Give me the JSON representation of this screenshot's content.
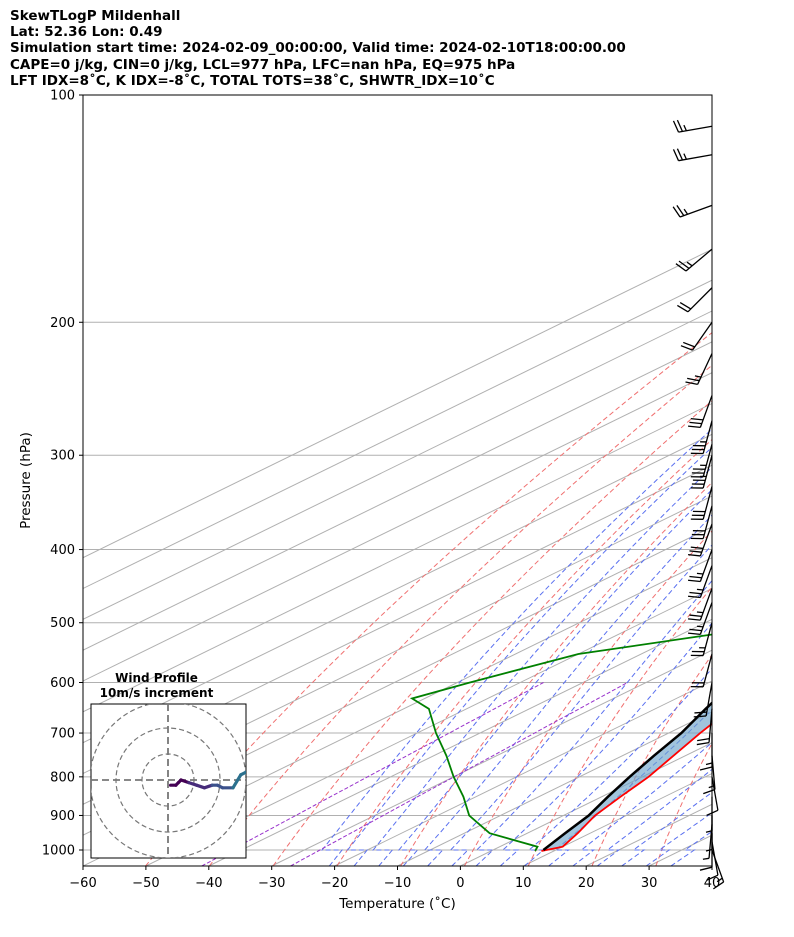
{
  "header": {
    "line1": "SkewTLogP Mildenhall",
    "line2": "Lat: 52.36   Lon: 0.49",
    "line3": "Simulation start time: 2024-02-09_00:00:00, Valid time: 2024-02-10T18:00:00.00",
    "line4": "CAPE=0 j/kg, CIN=0 j/kg, LCL=977 hPa, LFC=nan hPa, EQ=975 hPa",
    "line5": "LFT IDX=8˚C, K IDX=-8˚C, TOTAL TOTS=38˚C, SHWTR_IDX=10˚C"
  },
  "chart_data": {
    "type": "skewt",
    "xlabel": "Temperature (˚C)",
    "ylabel": "Pressure (hPa)",
    "xlim": [
      -60,
      40
    ],
    "ylim": [
      1050,
      100
    ],
    "log_y": true,
    "grid": true,
    "x_ticks": [
      "−60",
      "−50",
      "−40",
      "−30",
      "−20",
      "−10",
      "0",
      "10",
      "20",
      "30",
      "40"
    ],
    "y_ticks": [
      "100",
      "200",
      "300",
      "400",
      "500",
      "600",
      "700",
      "800",
      "900",
      "1000"
    ],
    "series": [
      {
        "role": "temperature",
        "color": "#ff0000",
        "points": [
          [
            1003,
            8
          ],
          [
            990,
            10
          ],
          [
            950,
            8
          ],
          [
            900,
            5
          ],
          [
            850,
            3
          ],
          [
            800,
            1
          ],
          [
            700,
            -5
          ],
          [
            650,
            -8
          ],
          [
            600,
            -12
          ],
          [
            550,
            -17
          ],
          [
            500,
            -22
          ],
          [
            450,
            -26
          ],
          [
            400,
            -31
          ],
          [
            350,
            -37
          ],
          [
            300,
            -44
          ],
          [
            270,
            -49
          ],
          [
            250,
            -52
          ],
          [
            240,
            -53
          ],
          [
            220,
            -52
          ],
          [
            200,
            -54
          ],
          [
            180,
            -56
          ],
          [
            160,
            -58
          ],
          [
            140,
            -58
          ],
          [
            120,
            -60
          ],
          [
            100,
            -62
          ]
        ]
      },
      {
        "role": "dewpoint",
        "color": "#008000",
        "points": [
          [
            1003,
            7
          ],
          [
            990,
            6
          ],
          [
            950,
            -6
          ],
          [
            900,
            -15
          ],
          [
            850,
            -22
          ],
          [
            800,
            -30
          ],
          [
            750,
            -38
          ],
          [
            700,
            -47
          ],
          [
            650,
            -56
          ],
          [
            630,
            -62
          ],
          [
            600,
            -58
          ],
          [
            550,
            -50
          ],
          [
            500,
            -26
          ],
          [
            470,
            -25
          ],
          [
            450,
            -28
          ],
          [
            400,
            -34
          ],
          [
            350,
            -41
          ],
          [
            320,
            -47
          ],
          [
            300,
            -52
          ],
          [
            270,
            -56
          ],
          [
            250,
            -58
          ],
          [
            240,
            -60
          ],
          [
            220,
            -64
          ],
          [
            200,
            -70
          ],
          [
            185,
            -72
          ],
          [
            170,
            -72
          ],
          [
            150,
            -72
          ],
          [
            125,
            -72
          ],
          [
            100,
            -73
          ]
        ]
      },
      {
        "role": "parcel",
        "color": "#000000",
        "points": [
          [
            1000,
            8
          ],
          [
            950,
            6
          ],
          [
            900,
            4
          ],
          [
            850,
            1
          ],
          [
            800,
            -2
          ],
          [
            750,
            -5
          ],
          [
            700,
            -8
          ],
          [
            650,
            -12
          ],
          [
            600,
            -16
          ],
          [
            550,
            -20
          ],
          [
            500,
            -25
          ],
          [
            450,
            -30
          ],
          [
            400,
            -37
          ],
          [
            350,
            -44
          ],
          [
            300,
            -51
          ],
          [
            250,
            -60
          ],
          [
            200,
            -69
          ],
          [
            150,
            -82
          ],
          [
            125,
            -90
          ],
          [
            100,
            -98
          ]
        ]
      }
    ],
    "shading": {
      "label": "CAPE/CIN shading",
      "color": "#6fa5cb"
    },
    "dry_adiabats_theta_K": [
      220,
      230,
      240,
      250,
      260,
      270,
      280,
      290,
      300,
      310,
      320,
      330,
      340,
      350,
      360
    ],
    "moist_adiabats_T_C": [
      -24,
      -20,
      -16,
      -12,
      -8,
      -4,
      0,
      4,
      8,
      12,
      16,
      20,
      24,
      28,
      32
    ],
    "mixing_ratio_lines": {
      "color": "#9933cc"
    },
    "wind_barbs": [
      {
        "p": 1000,
        "dir": 160,
        "spd": 15
      },
      {
        "p": 975,
        "dir": 170,
        "spd": 12
      },
      {
        "p": 950,
        "dir": 180,
        "spd": 10
      },
      {
        "p": 925,
        "dir": 185,
        "spd": 8
      },
      {
        "p": 900,
        "dir": 180,
        "spd": 6
      },
      {
        "p": 850,
        "dir": 180,
        "spd": 5
      },
      {
        "p": 800,
        "dir": 170,
        "spd": 10
      },
      {
        "p": 750,
        "dir": 175,
        "spd": 15
      },
      {
        "p": 700,
        "dir": 180,
        "spd": 18
      },
      {
        "p": 650,
        "dir": 185,
        "spd": 20
      },
      {
        "p": 600,
        "dir": 190,
        "spd": 20
      },
      {
        "p": 550,
        "dir": 195,
        "spd": 20
      },
      {
        "p": 500,
        "dir": 195,
        "spd": 25
      },
      {
        "p": 470,
        "dir": 200,
        "spd": 25
      },
      {
        "p": 450,
        "dir": 200,
        "spd": 25
      },
      {
        "p": 420,
        "dir": 200,
        "spd": 25
      },
      {
        "p": 400,
        "dir": 200,
        "spd": 25
      },
      {
        "p": 370,
        "dir": 200,
        "spd": 30
      },
      {
        "p": 350,
        "dir": 195,
        "spd": 30
      },
      {
        "p": 330,
        "dir": 195,
        "spd": 30
      },
      {
        "p": 300,
        "dir": 195,
        "spd": 35
      },
      {
        "p": 290,
        "dir": 195,
        "spd": 35
      },
      {
        "p": 270,
        "dir": 195,
        "spd": 35
      },
      {
        "p": 250,
        "dir": 200,
        "spd": 30
      },
      {
        "p": 220,
        "dir": 205,
        "spd": 25
      },
      {
        "p": 200,
        "dir": 215,
        "spd": 20
      },
      {
        "p": 180,
        "dir": 225,
        "spd": 20
      },
      {
        "p": 160,
        "dir": 230,
        "spd": 25
      },
      {
        "p": 140,
        "dir": 250,
        "spd": 25
      },
      {
        "p": 120,
        "dir": 260,
        "spd": 25
      },
      {
        "p": 110,
        "dir": 260,
        "spd": 25
      }
    ],
    "hodograph": {
      "title": "Wind Profile",
      "subtitle": "10m/s increment",
      "rings_ms": [
        10,
        20,
        30
      ],
      "uv_points": [
        [
          -2,
          1
        ],
        [
          -2,
          3
        ],
        [
          -1,
          4
        ],
        [
          0,
          5
        ],
        [
          -1,
          8
        ],
        [
          -2,
          11
        ],
        [
          -3,
          14
        ],
        [
          -2,
          17
        ],
        [
          -2,
          19
        ],
        [
          -3,
          21
        ],
        [
          -3,
          25
        ],
        [
          2,
          28
        ],
        [
          3,
          30
        ],
        [
          4,
          32
        ],
        [
          4,
          34
        ],
        [
          4,
          36
        ],
        [
          3,
          38
        ],
        [
          3,
          40
        ],
        [
          4,
          42
        ],
        [
          5,
          44
        ],
        [
          5,
          46
        ],
        [
          6,
          48
        ],
        [
          8,
          49
        ],
        [
          11,
          50
        ],
        [
          12,
          52
        ],
        [
          14,
          55
        ],
        [
          16,
          57
        ],
        [
          17,
          58
        ],
        [
          20,
          60
        ]
      ]
    }
  }
}
